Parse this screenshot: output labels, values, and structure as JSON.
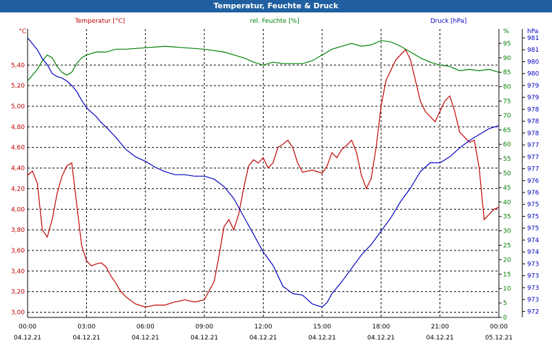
{
  "window": {
    "title": "Temperatur, Feuchte & Druck"
  },
  "colors": {
    "title_bar": "#1f5f9f",
    "temperature": "#c00000",
    "humidity": "#008000",
    "pressure": "#0000c0",
    "grid": "#000000"
  },
  "chart_data": {
    "type": "line",
    "title": "Temperatur, Feuchte & Druck",
    "grid": true,
    "x_range": [
      0,
      24
    ],
    "x_ticks": [
      {
        "x": 0,
        "time": "00:00",
        "date": "04.12.21"
      },
      {
        "x": 3,
        "time": "03:00",
        "date": "04.12.21"
      },
      {
        "x": 6,
        "time": "06:00",
        "date": "04.12.21"
      },
      {
        "x": 9,
        "time": "09:00",
        "date": "04.12.21"
      },
      {
        "x": 12,
        "time": "12:00",
        "date": "04.12.21"
      },
      {
        "x": 15,
        "time": "15:00",
        "date": "04.12.21"
      },
      {
        "x": 18,
        "time": "18:00",
        "date": "04.12.21"
      },
      {
        "x": 21,
        "time": "21:00",
        "date": "04.12.21"
      },
      {
        "x": 24,
        "time": "00:00",
        "date": "05.12.21"
      }
    ],
    "axes": {
      "temperature": {
        "label": "Temperatur [°C]",
        "unit": "°C",
        "range": [
          2.95,
          5.75
        ],
        "ticks": [
          3.0,
          3.2,
          3.4,
          3.6,
          3.8,
          4.0,
          4.2,
          4.4,
          4.6,
          4.8,
          5.0,
          5.2,
          5.4
        ],
        "tick_labels": [
          "3,00",
          "3,20",
          "3,40",
          "3,60",
          "3,80",
          "4,00",
          "4,20",
          "4,40",
          "4,60",
          "4,80",
          "5,00",
          "5,20",
          "5,40"
        ]
      },
      "humidity": {
        "label": "rel. Feuchte [%]",
        "unit": "%",
        "range": [
          0,
          100
        ],
        "ticks": [
          0,
          5,
          10,
          15,
          20,
          25,
          30,
          35,
          40,
          45,
          50,
          55,
          60,
          65,
          70,
          75,
          80,
          85,
          90,
          95
        ],
        "tick_labels": [
          "0",
          "5",
          "10",
          "15",
          "20",
          "25",
          "30",
          "35",
          "40",
          "45",
          "50",
          "55",
          "60",
          "65",
          "70",
          "75",
          "80",
          "85",
          "90",
          "95"
        ]
      },
      "pressure": {
        "label": "Druck [hPa]",
        "unit": "hPa",
        "range": [
          971.8,
          981.5
        ],
        "tick_values": [
          972,
          972.4,
          972.8,
          973.2,
          973.6,
          974,
          974.4,
          974.8,
          975.2,
          975.6,
          976,
          976.4,
          976.8,
          977.2,
          977.6,
          978,
          978.4,
          978.8,
          979.2,
          979.6,
          980,
          980.4,
          980.8,
          981.2
        ],
        "tick_labels": [
          "972",
          "973",
          "973",
          "973",
          "973",
          "974",
          "974",
          "975",
          "975",
          "975",
          "976",
          "976",
          "977",
          "977",
          "977",
          "978",
          "978",
          "978",
          "979",
          "979",
          "980",
          "980",
          "981",
          "981"
        ]
      }
    },
    "series": [
      {
        "name": "Temperatur",
        "axis": "temperature",
        "x": [
          0,
          0.25,
          0.5,
          0.75,
          1,
          1.25,
          1.5,
          1.75,
          2,
          2.25,
          2.5,
          2.75,
          3,
          3.25,
          3.5,
          3.75,
          4,
          4.25,
          4.5,
          4.75,
          5,
          5.5,
          6,
          6.5,
          7,
          7.5,
          8,
          8.5,
          9,
          9.5,
          9.75,
          10,
          10.25,
          10.5,
          10.75,
          11,
          11.25,
          11.5,
          11.75,
          12,
          12.25,
          12.5,
          12.75,
          13,
          13.25,
          13.5,
          13.75,
          14,
          14.5,
          15,
          15.25,
          15.5,
          15.75,
          16,
          16.25,
          16.5,
          16.75,
          17,
          17.25,
          17.5,
          17.75,
          18,
          18.25,
          18.5,
          18.75,
          19,
          19.25,
          19.5,
          19.75,
          20,
          20.25,
          20.5,
          20.75,
          21,
          21.25,
          21.5,
          21.75,
          22,
          22.25,
          22.5,
          22.75,
          23,
          23.25,
          23.5,
          23.75,
          24
        ],
        "values": [
          4.33,
          4.37,
          4.25,
          3.8,
          3.73,
          3.9,
          4.15,
          4.32,
          4.42,
          4.45,
          4.05,
          3.65,
          3.5,
          3.45,
          3.47,
          3.48,
          3.44,
          3.35,
          3.28,
          3.2,
          3.15,
          3.08,
          3.05,
          3.07,
          3.07,
          3.1,
          3.12,
          3.1,
          3.12,
          3.3,
          3.55,
          3.83,
          3.9,
          3.8,
          3.95,
          4.2,
          4.42,
          4.48,
          4.45,
          4.5,
          4.4,
          4.45,
          4.6,
          4.63,
          4.67,
          4.6,
          4.45,
          4.36,
          4.38,
          4.35,
          4.42,
          4.55,
          4.5,
          4.58,
          4.62,
          4.67,
          4.55,
          4.33,
          4.2,
          4.3,
          4.6,
          5.0,
          5.25,
          5.35,
          5.45,
          5.5,
          5.55,
          5.45,
          5.25,
          5.05,
          4.95,
          4.9,
          4.85,
          4.95,
          5.05,
          5.1,
          4.95,
          4.75,
          4.7,
          4.65,
          4.67,
          4.4,
          3.9,
          3.95,
          4.0,
          4.02
        ]
      },
      {
        "name": "rel. Feuchte",
        "axis": "humidity",
        "x": [
          0,
          0.25,
          0.5,
          0.75,
          1,
          1.25,
          1.5,
          1.75,
          2,
          2.25,
          2.5,
          2.75,
          3,
          3.5,
          4,
          4.5,
          5,
          6,
          7,
          8,
          9,
          10,
          10.5,
          11,
          11.5,
          12,
          12.5,
          13,
          13.5,
          14,
          14.5,
          15,
          15.5,
          16,
          16.5,
          17,
          17.5,
          18,
          18.5,
          19,
          19.5,
          20,
          20.5,
          21,
          21.5,
          22,
          22.5,
          23,
          23.5,
          24
        ],
        "values": [
          82,
          84,
          86,
          89,
          91,
          90,
          87,
          85,
          84,
          85,
          88,
          90,
          91,
          92,
          92,
          93,
          93,
          93.5,
          94,
          93.5,
          93,
          92,
          91,
          90,
          88.5,
          87.5,
          88.5,
          88,
          88,
          88,
          89,
          91,
          93,
          94,
          95,
          94,
          94.5,
          96,
          95.5,
          94,
          92,
          90,
          88.5,
          87.5,
          87,
          85.5,
          86,
          85.5,
          86,
          85
        ]
      },
      {
        "name": "Druck",
        "axis": "pressure",
        "x": [
          0,
          0.25,
          0.5,
          0.75,
          1,
          1.25,
          1.5,
          1.75,
          2,
          2.25,
          2.5,
          2.75,
          3,
          3.25,
          3.5,
          3.75,
          4,
          4.5,
          5,
          5.5,
          6,
          6.5,
          7,
          7.5,
          8,
          8.5,
          9,
          9.5,
          10,
          10.5,
          11,
          11.5,
          12,
          12.5,
          13,
          13.5,
          14,
          14.5,
          15,
          15.25,
          15.5,
          16,
          16.5,
          17,
          17.5,
          18,
          18.5,
          19,
          19.5,
          20,
          20.5,
          21,
          21.5,
          22,
          22.5,
          23,
          23.5,
          24
        ],
        "values": [
          981.2,
          981.0,
          980.8,
          980.5,
          980.3,
          980.0,
          979.9,
          979.85,
          979.75,
          979.6,
          979.4,
          979.1,
          978.85,
          978.7,
          978.55,
          978.35,
          978.2,
          977.85,
          977.45,
          977.2,
          977.05,
          976.85,
          976.7,
          976.6,
          976.6,
          976.55,
          976.55,
          976.45,
          976.2,
          975.8,
          975.2,
          974.6,
          974.0,
          973.55,
          972.85,
          972.6,
          972.55,
          972.25,
          972.15,
          972.3,
          972.6,
          973.0,
          973.45,
          973.9,
          974.25,
          974.7,
          975.15,
          975.7,
          976.15,
          976.7,
          977.0,
          977.0,
          977.2,
          977.5,
          977.75,
          977.95,
          978.15,
          978.25
        ]
      }
    ]
  }
}
